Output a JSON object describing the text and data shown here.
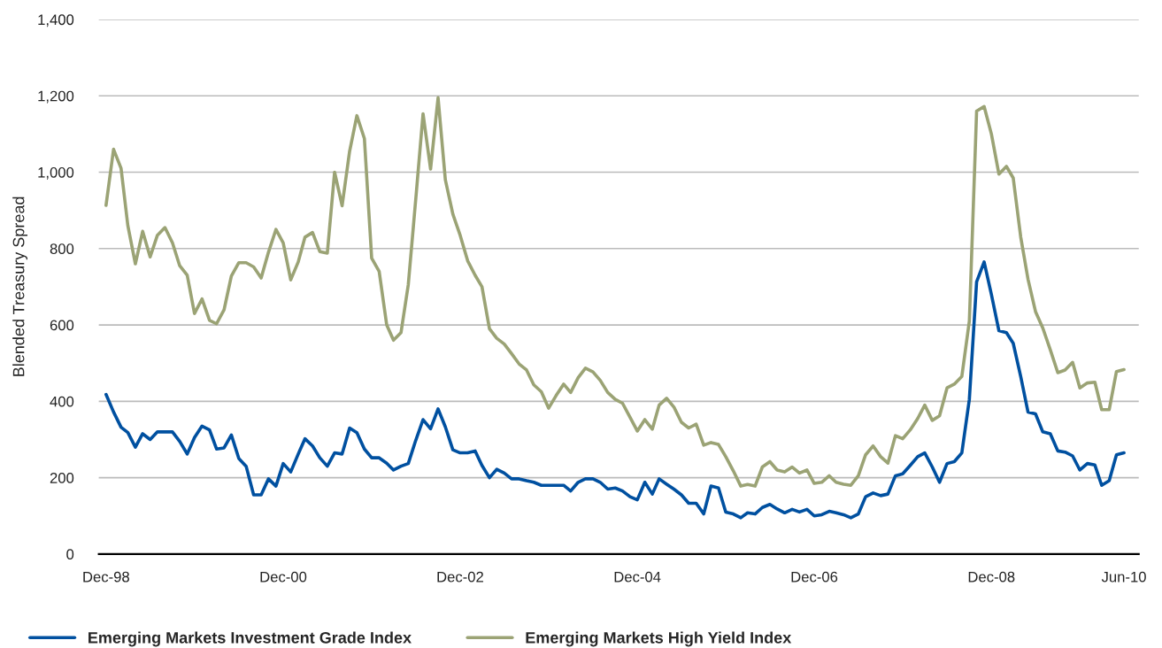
{
  "chart_data": {
    "type": "line",
    "ylabel": "Blended Treasury Spread",
    "x": [
      "1998-12",
      "1999-01",
      "1999-02",
      "1999-03",
      "1999-04",
      "1999-05",
      "1999-06",
      "1999-07",
      "1999-08",
      "1999-09",
      "1999-10",
      "1999-11",
      "1999-12",
      "2000-01",
      "2000-02",
      "2000-03",
      "2000-04",
      "2000-05",
      "2000-06",
      "2000-07",
      "2000-08",
      "2000-09",
      "2000-10",
      "2000-11",
      "2000-12",
      "2001-01",
      "2001-02",
      "2001-03",
      "2001-04",
      "2001-05",
      "2001-06",
      "2001-07",
      "2001-08",
      "2001-09",
      "2001-10",
      "2001-11",
      "2001-12",
      "2002-01",
      "2002-02",
      "2002-03",
      "2002-04",
      "2002-05",
      "2002-06",
      "2002-07",
      "2002-08",
      "2002-09",
      "2002-10",
      "2002-11",
      "2002-12",
      "2003-01",
      "2003-02",
      "2003-03",
      "2003-04",
      "2003-05",
      "2003-06",
      "2003-07",
      "2003-08",
      "2003-09",
      "2003-10",
      "2003-11",
      "2003-12",
      "2004-01",
      "2004-02",
      "2004-03",
      "2004-04",
      "2004-05",
      "2004-06",
      "2004-07",
      "2004-08",
      "2004-09",
      "2004-10",
      "2004-11",
      "2004-12",
      "2005-01",
      "2005-02",
      "2005-03",
      "2005-04",
      "2005-05",
      "2005-06",
      "2005-07",
      "2005-08",
      "2005-09",
      "2005-10",
      "2005-11",
      "2005-12",
      "2006-01",
      "2006-02",
      "2006-03",
      "2006-04",
      "2006-05",
      "2006-06",
      "2006-07",
      "2006-08",
      "2006-09",
      "2006-10",
      "2006-11",
      "2006-12",
      "2007-01",
      "2007-02",
      "2007-03",
      "2007-04",
      "2007-05",
      "2007-06",
      "2007-07",
      "2007-08",
      "2007-09",
      "2007-10",
      "2007-11",
      "2007-12",
      "2008-01",
      "2008-02",
      "2008-03",
      "2008-04",
      "2008-05",
      "2008-06",
      "2008-07",
      "2008-08",
      "2008-09",
      "2008-10",
      "2008-11",
      "2008-12",
      "2009-01",
      "2009-02",
      "2009-03",
      "2009-04",
      "2009-05",
      "2009-06",
      "2009-07",
      "2009-08",
      "2009-09",
      "2009-10",
      "2009-11",
      "2009-12",
      "2010-01",
      "2010-02",
      "2010-03",
      "2010-04",
      "2010-05",
      "2010-06"
    ],
    "series": [
      {
        "name": "Emerging Markets Investment Grade Index",
        "color": "#0050a0",
        "values": [
          418,
          372,
          332,
          318,
          280,
          315,
          300,
          320,
          320,
          320,
          295,
          262,
          305,
          335,
          325,
          275,
          278,
          312,
          250,
          230,
          155,
          155,
          197,
          178,
          237,
          215,
          262,
          302,
          283,
          252,
          230,
          265,
          262,
          330,
          318,
          275,
          252,
          252,
          238,
          220,
          230,
          237,
          298,
          352,
          328,
          380,
          333,
          273,
          265,
          265,
          270,
          232,
          200,
          222,
          212,
          197,
          197,
          192,
          188,
          180,
          180,
          180,
          180,
          165,
          188,
          197,
          197,
          188,
          170,
          173,
          165,
          150,
          142,
          188,
          157,
          197,
          183,
          170,
          155,
          133,
          133,
          105,
          178,
          173,
          110,
          105,
          95,
          108,
          105,
          122,
          130,
          118,
          108,
          117,
          110,
          117,
          100,
          103,
          112,
          108,
          103,
          95,
          105,
          150,
          160,
          153,
          157,
          205,
          210,
          232,
          255,
          265,
          228,
          188,
          237,
          242,
          265,
          405,
          713,
          765,
          680,
          585,
          580,
          552,
          465,
          372,
          367,
          320,
          315,
          270,
          267,
          257,
          220,
          237,
          233,
          180,
          192,
          260,
          265
        ]
      },
      {
        "name": "Emerging Markets High Yield Index",
        "color": "#9ba375",
        "values": [
          913,
          1060,
          1010,
          860,
          760,
          845,
          778,
          835,
          855,
          815,
          755,
          730,
          630,
          668,
          612,
          603,
          640,
          728,
          763,
          763,
          752,
          723,
          790,
          850,
          815,
          718,
          765,
          830,
          842,
          792,
          788,
          1000,
          912,
          1055,
          1148,
          1088,
          775,
          740,
          600,
          560,
          580,
          705,
          930,
          1153,
          1008,
          1195,
          980,
          890,
          835,
          768,
          730,
          700,
          590,
          565,
          550,
          525,
          498,
          482,
          443,
          425,
          382,
          415,
          445,
          423,
          462,
          487,
          477,
          455,
          423,
          405,
          395,
          358,
          322,
          352,
          327,
          390,
          408,
          385,
          345,
          330,
          340,
          285,
          292,
          287,
          255,
          218,
          178,
          182,
          178,
          228,
          242,
          220,
          215,
          228,
          212,
          220,
          185,
          188,
          205,
          188,
          183,
          180,
          205,
          260,
          283,
          255,
          238,
          310,
          302,
          325,
          355,
          390,
          350,
          362,
          435,
          445,
          465,
          610,
          1160,
          1172,
          1100,
          995,
          1015,
          985,
          830,
          720,
          635,
          592,
          535,
          475,
          482,
          502,
          435,
          448,
          450,
          378,
          378,
          478,
          483
        ]
      }
    ],
    "xlim": [
      "1998-11",
      "2010-08"
    ],
    "xticks": [
      {
        "value": "1998-12",
        "label": "Dec-98"
      },
      {
        "value": "2000-12",
        "label": "Dec-00"
      },
      {
        "value": "2002-12",
        "label": "Dec-02"
      },
      {
        "value": "2004-12",
        "label": "Dec-04"
      },
      {
        "value": "2006-12",
        "label": "Dec-06"
      },
      {
        "value": "2008-12",
        "label": "Dec-08"
      },
      {
        "value": "2010-06",
        "label": "Jun-10"
      }
    ],
    "ylim": [
      0,
      1400
    ],
    "yticks": [
      0,
      200,
      400,
      600,
      800,
      {
        "value": 1000,
        "label": "1,000"
      },
      {
        "value": 1200,
        "label": "1,200"
      },
      {
        "value": 1400,
        "label": "1,400"
      }
    ],
    "grid": "y",
    "legend": "bottom left",
    "line_style": "solid",
    "marker": "none"
  }
}
